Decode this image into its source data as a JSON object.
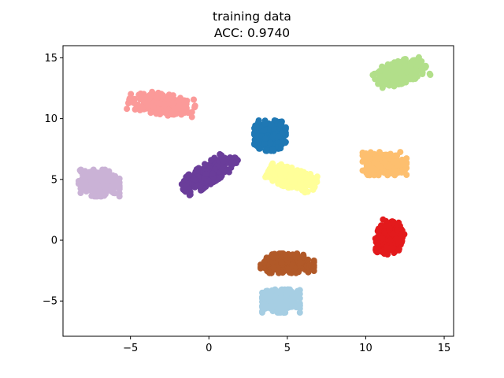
{
  "chart_data": {
    "type": "scatter",
    "title": "training data",
    "subtitle": "ACC: 0.9740",
    "xlabel": "",
    "ylabel": "",
    "xlim": [
      -9.3,
      15.6
    ],
    "ylim": [
      -7.9,
      16.0
    ],
    "xticks": [
      -5,
      0,
      5,
      10,
      15
    ],
    "yticks": [
      -5,
      0,
      5,
      10,
      15
    ],
    "grid": false,
    "legend": "none",
    "clusters": [
      {
        "color": "#b2df8a",
        "center": [
          12.2,
          13.8
        ],
        "spread": [
          1.7,
          0.9
        ],
        "angle": 22
      },
      {
        "color": "#fb9a99",
        "center": [
          -3.0,
          11.2
        ],
        "spread": [
          2.1,
          0.85
        ],
        "angle": -12
      },
      {
        "color": "#1f78b4",
        "center": [
          3.9,
          8.6
        ],
        "spread": [
          1.0,
          1.25
        ],
        "angle": 0
      },
      {
        "color": "#6a3d9a",
        "center": [
          0.0,
          5.5
        ],
        "spread": [
          2.1,
          0.75
        ],
        "angle": 40
      },
      {
        "color": "#ffff99",
        "center": [
          5.3,
          5.1
        ],
        "spread": [
          1.6,
          0.8
        ],
        "angle": -22
      },
      {
        "color": "#fdbf6f",
        "center": [
          11.2,
          6.3
        ],
        "spread": [
          1.4,
          0.95
        ],
        "angle": 0
      },
      {
        "color": "#cab2d6",
        "center": [
          -7.0,
          4.7
        ],
        "spread": [
          1.3,
          1.1
        ],
        "angle": 0
      },
      {
        "color": "#e31a1c",
        "center": [
          11.5,
          0.2
        ],
        "spread": [
          0.85,
          1.35
        ],
        "angle": -15
      },
      {
        "color": "#b15928",
        "center": [
          5.0,
          -1.9
        ],
        "spread": [
          1.7,
          0.8
        ],
        "angle": 0
      },
      {
        "color": "#a6cee3",
        "center": [
          4.6,
          -5.0
        ],
        "spread": [
          1.2,
          0.95
        ],
        "angle": 0
      }
    ]
  }
}
